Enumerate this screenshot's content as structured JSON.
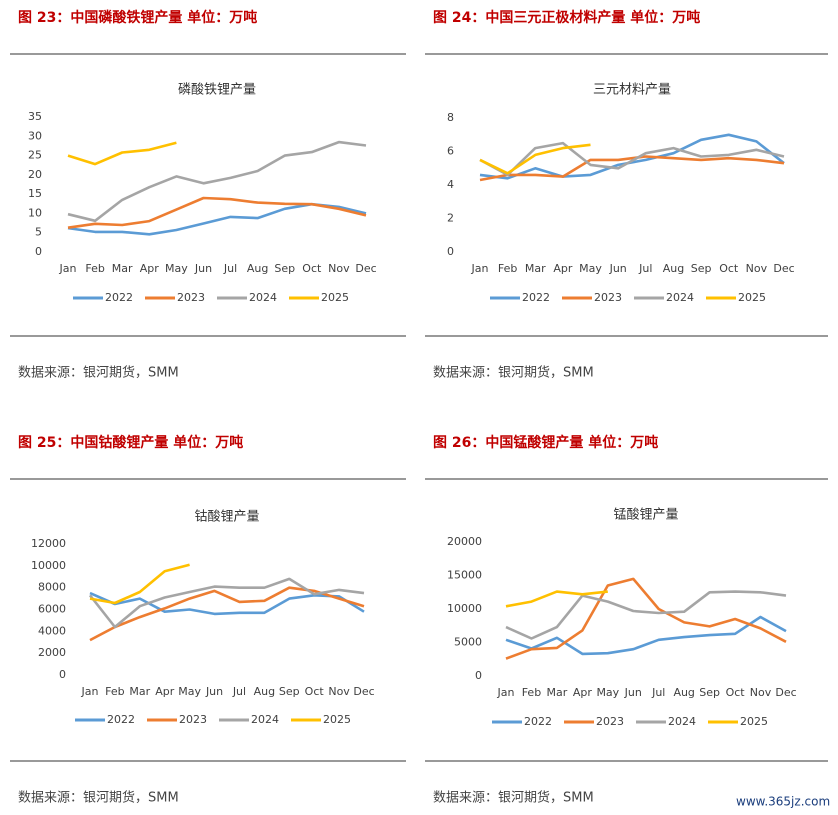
{
  "figures": [
    {
      "caption": "图 23：中国磷酸铁锂产量   单位：万吨",
      "source": "数据来源：银河期货，SMM"
    },
    {
      "caption": "图 24：中国三元正极材料产量   单位：万吨",
      "source": "数据来源：银河期货，SMM"
    },
    {
      "caption": "图 25：中国钴酸锂产量   单位：万吨",
      "source": "数据来源：银河期货，SMM"
    },
    {
      "caption": "图 26：中国锰酸锂产量   单位：万吨",
      "source": "数据来源：银河期货，SMM"
    }
  ],
  "watermark": "www.365jz.com",
  "chart_data": [
    {
      "type": "line",
      "title": "磷酸铁锂产量",
      "categories": [
        "Jan",
        "Feb",
        "Mar",
        "Apr",
        "May",
        "Jun",
        "Jul",
        "Aug",
        "Sep",
        "Oct",
        "Nov",
        "Dec"
      ],
      "ylim": [
        0,
        35
      ],
      "yticks": [
        0,
        5,
        10,
        15,
        20,
        25,
        30,
        35
      ],
      "grid": false,
      "series": [
        {
          "name": "2022",
          "color": "#5b9bd5",
          "values": [
            6.2,
            5.2,
            5.2,
            4.6,
            5.7,
            7.4,
            9.1,
            8.8,
            11.2,
            12.4,
            11.7,
            10.0
          ]
        },
        {
          "name": "2023",
          "color": "#ed7d31",
          "values": [
            6.3,
            7.3,
            7.0,
            8.0,
            11.0,
            14.0,
            13.7,
            12.8,
            12.5,
            12.4,
            11.2,
            9.5
          ]
        },
        {
          "name": "2024",
          "color": "#a5a5a5",
          "values": [
            9.8,
            8.1,
            13.5,
            16.8,
            19.6,
            17.8,
            19.2,
            21.0,
            25.0,
            25.9,
            28.5,
            27.6
          ]
        },
        {
          "name": "2025",
          "color": "#ffc000",
          "values": [
            25.0,
            22.8,
            25.8,
            26.5,
            28.3,
            null,
            null,
            null,
            null,
            null,
            null,
            null
          ]
        }
      ]
    },
    {
      "type": "line",
      "title": "三元材料产量",
      "categories": [
        "Jan",
        "Feb",
        "Mar",
        "Apr",
        "May",
        "Jun",
        "Jul",
        "Aug",
        "Sep",
        "Oct",
        "Nov",
        "Dec"
      ],
      "ylim": [
        0,
        8
      ],
      "yticks": [
        0,
        2,
        4,
        6,
        8
      ],
      "grid": false,
      "series": [
        {
          "name": "2022",
          "color": "#5b9bd5",
          "values": [
            4.6,
            4.4,
            5.0,
            4.5,
            4.6,
            5.2,
            5.5,
            5.9,
            6.7,
            7.0,
            6.6,
            5.3
          ]
        },
        {
          "name": "2023",
          "color": "#ed7d31",
          "values": [
            4.3,
            4.6,
            4.6,
            4.5,
            5.5,
            5.5,
            5.7,
            5.6,
            5.5,
            5.6,
            5.5,
            5.3
          ]
        },
        {
          "name": "2024",
          "color": "#a5a5a5",
          "values": [
            5.5,
            4.6,
            6.2,
            6.5,
            5.2,
            5.0,
            5.9,
            6.2,
            5.7,
            5.8,
            6.1,
            5.7
          ]
        },
        {
          "name": "2025",
          "color": "#ffc000",
          "values": [
            5.5,
            4.7,
            5.8,
            6.2,
            6.4,
            null,
            null,
            null,
            null,
            null,
            null,
            null
          ]
        }
      ]
    },
    {
      "type": "line",
      "title": "钴酸锂产量",
      "categories": [
        "Jan",
        "Feb",
        "Mar",
        "Apr",
        "May",
        "Jun",
        "Jul",
        "Aug",
        "Sep",
        "Oct",
        "Nov",
        "Dec"
      ],
      "ylim": [
        0,
        12000
      ],
      "yticks": [
        0,
        2000,
        4000,
        6000,
        8000,
        10000,
        12000
      ],
      "grid": false,
      "series": [
        {
          "name": "2022",
          "color": "#5b9bd5",
          "values": [
            7500,
            6500,
            7000,
            5800,
            6000,
            5600,
            5700,
            5700,
            7000,
            7300,
            7200,
            5800
          ]
        },
        {
          "name": "2023",
          "color": "#ed7d31",
          "values": [
            3200,
            4400,
            5300,
            6100,
            7000,
            7700,
            6700,
            6800,
            8000,
            7700,
            7000,
            6300
          ]
        },
        {
          "name": "2024",
          "color": "#a5a5a5",
          "values": [
            7300,
            4400,
            6300,
            7100,
            7600,
            8100,
            8000,
            8000,
            8800,
            7400,
            7800,
            7500
          ]
        },
        {
          "name": "2025",
          "color": "#ffc000",
          "values": [
            7000,
            6600,
            7600,
            9500,
            10100,
            null,
            null,
            null,
            null,
            null,
            null,
            null
          ]
        }
      ]
    },
    {
      "type": "line",
      "title": "锰酸锂产量",
      "categories": [
        "Jan",
        "Feb",
        "Mar",
        "Apr",
        "May",
        "Jun",
        "Jul",
        "Aug",
        "Sep",
        "Oct",
        "Nov",
        "Dec"
      ],
      "ylim": [
        0,
        20000
      ],
      "yticks": [
        0,
        5000,
        10000,
        15000,
        20000
      ],
      "grid": false,
      "series": [
        {
          "name": "2022",
          "color": "#5b9bd5",
          "values": [
            5400,
            4100,
            5700,
            3300,
            3400,
            4000,
            5400,
            5800,
            6100,
            6300,
            8800,
            6700
          ]
        },
        {
          "name": "2023",
          "color": "#ed7d31",
          "values": [
            2600,
            4000,
            4200,
            6800,
            13500,
            14500,
            10000,
            8000,
            7400,
            8500,
            7100,
            5100
          ]
        },
        {
          "name": "2024",
          "color": "#a5a5a5",
          "values": [
            7300,
            5600,
            7300,
            12000,
            11100,
            9700,
            9400,
            9600,
            12500,
            12600,
            12500,
            12000
          ]
        },
        {
          "name": "2025",
          "color": "#ffc000",
          "values": [
            10400,
            11100,
            12600,
            12200,
            12600,
            null,
            null,
            null,
            null,
            null,
            null,
            null
          ]
        }
      ]
    }
  ]
}
